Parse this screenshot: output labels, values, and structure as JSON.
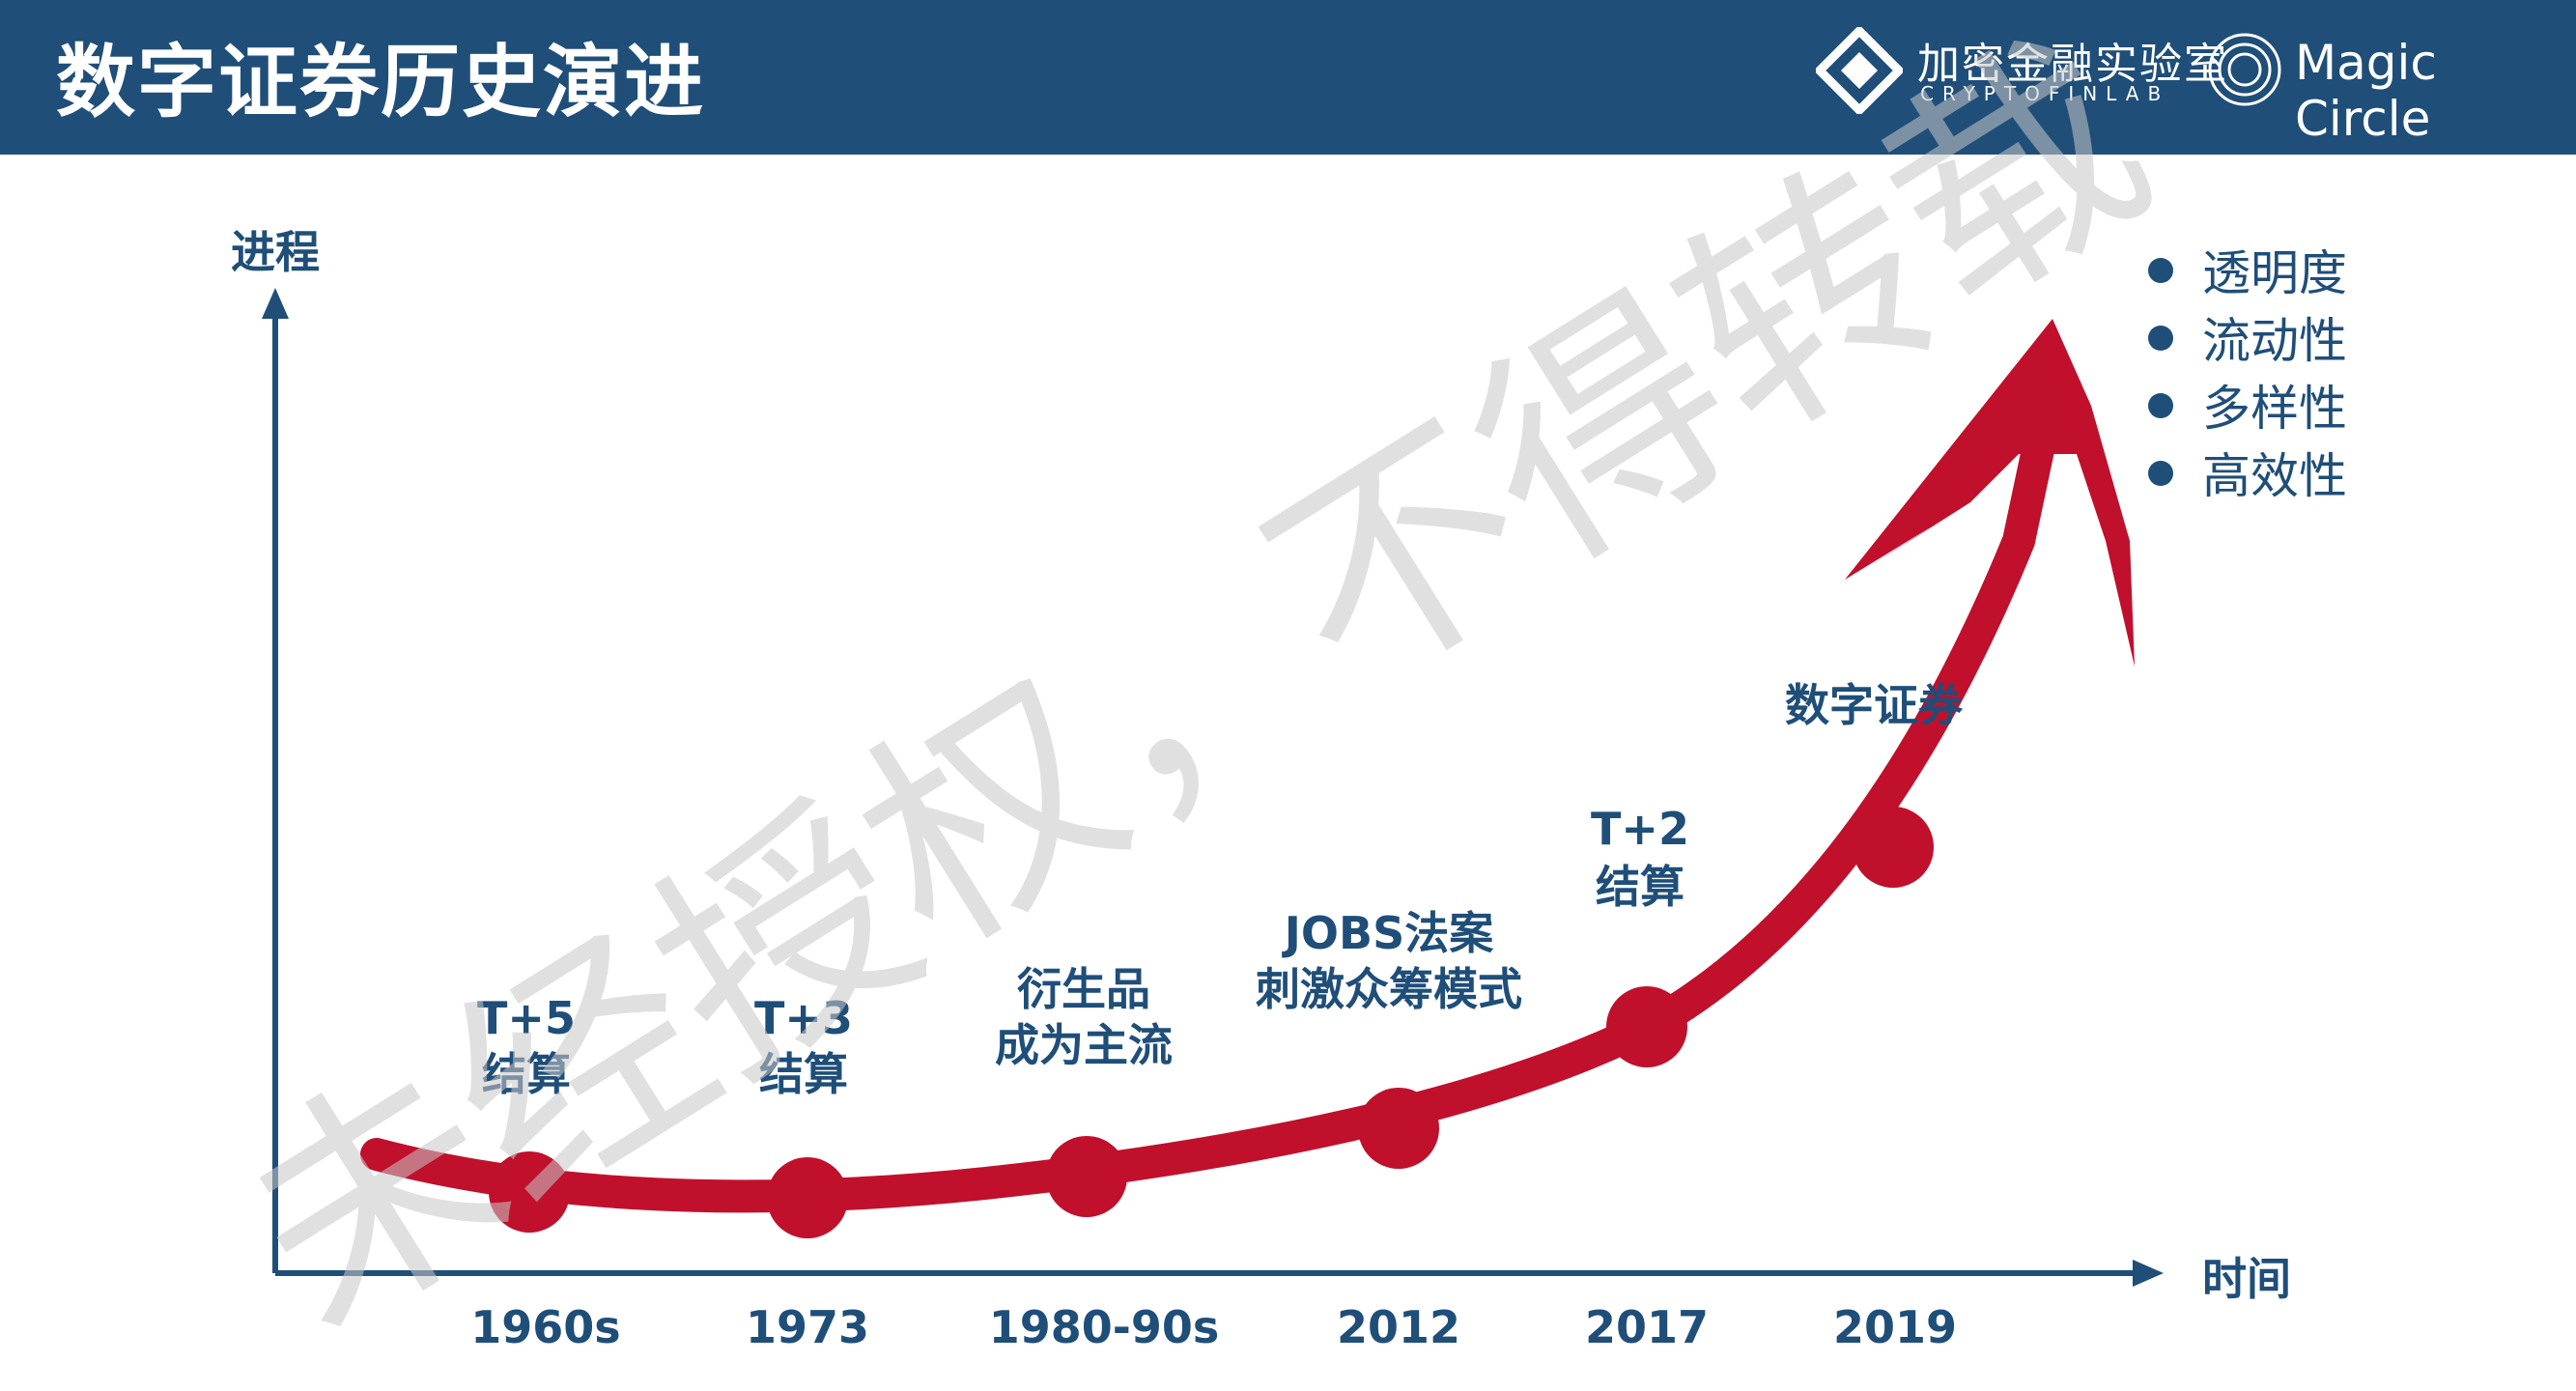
{
  "title": "数字证券历史演进",
  "logo_cryptofinlab": {
    "cn": "加密金融实验室",
    "en": "CRYPTOFINLAB"
  },
  "logo_magic_circle": "Magic Circle",
  "axis": {
    "y_label": "进程",
    "x_label": "时间"
  },
  "milestones": [
    {
      "year": "1960s",
      "line1": "T+5",
      "line2": "结算"
    },
    {
      "year": "1973",
      "line1": "T+3",
      "line2": "结算"
    },
    {
      "year": "1980-90s",
      "line1": "衍生品",
      "line2": "成为主流"
    },
    {
      "year": "2012",
      "line1": "JOBS法案",
      "line2": "刺激众筹模式"
    },
    {
      "year": "2017",
      "line1": "T+2",
      "line2": "结算"
    },
    {
      "year": "2019",
      "line1": "数字证券",
      "line2": ""
    }
  ],
  "benefits": [
    "透明度",
    "流动性",
    "多样性",
    "高效性"
  ],
  "watermark": "未经授权，不得转载",
  "colors": {
    "header": "#1f4e79",
    "curve": "#c0102c",
    "text": "#1f4e79"
  }
}
